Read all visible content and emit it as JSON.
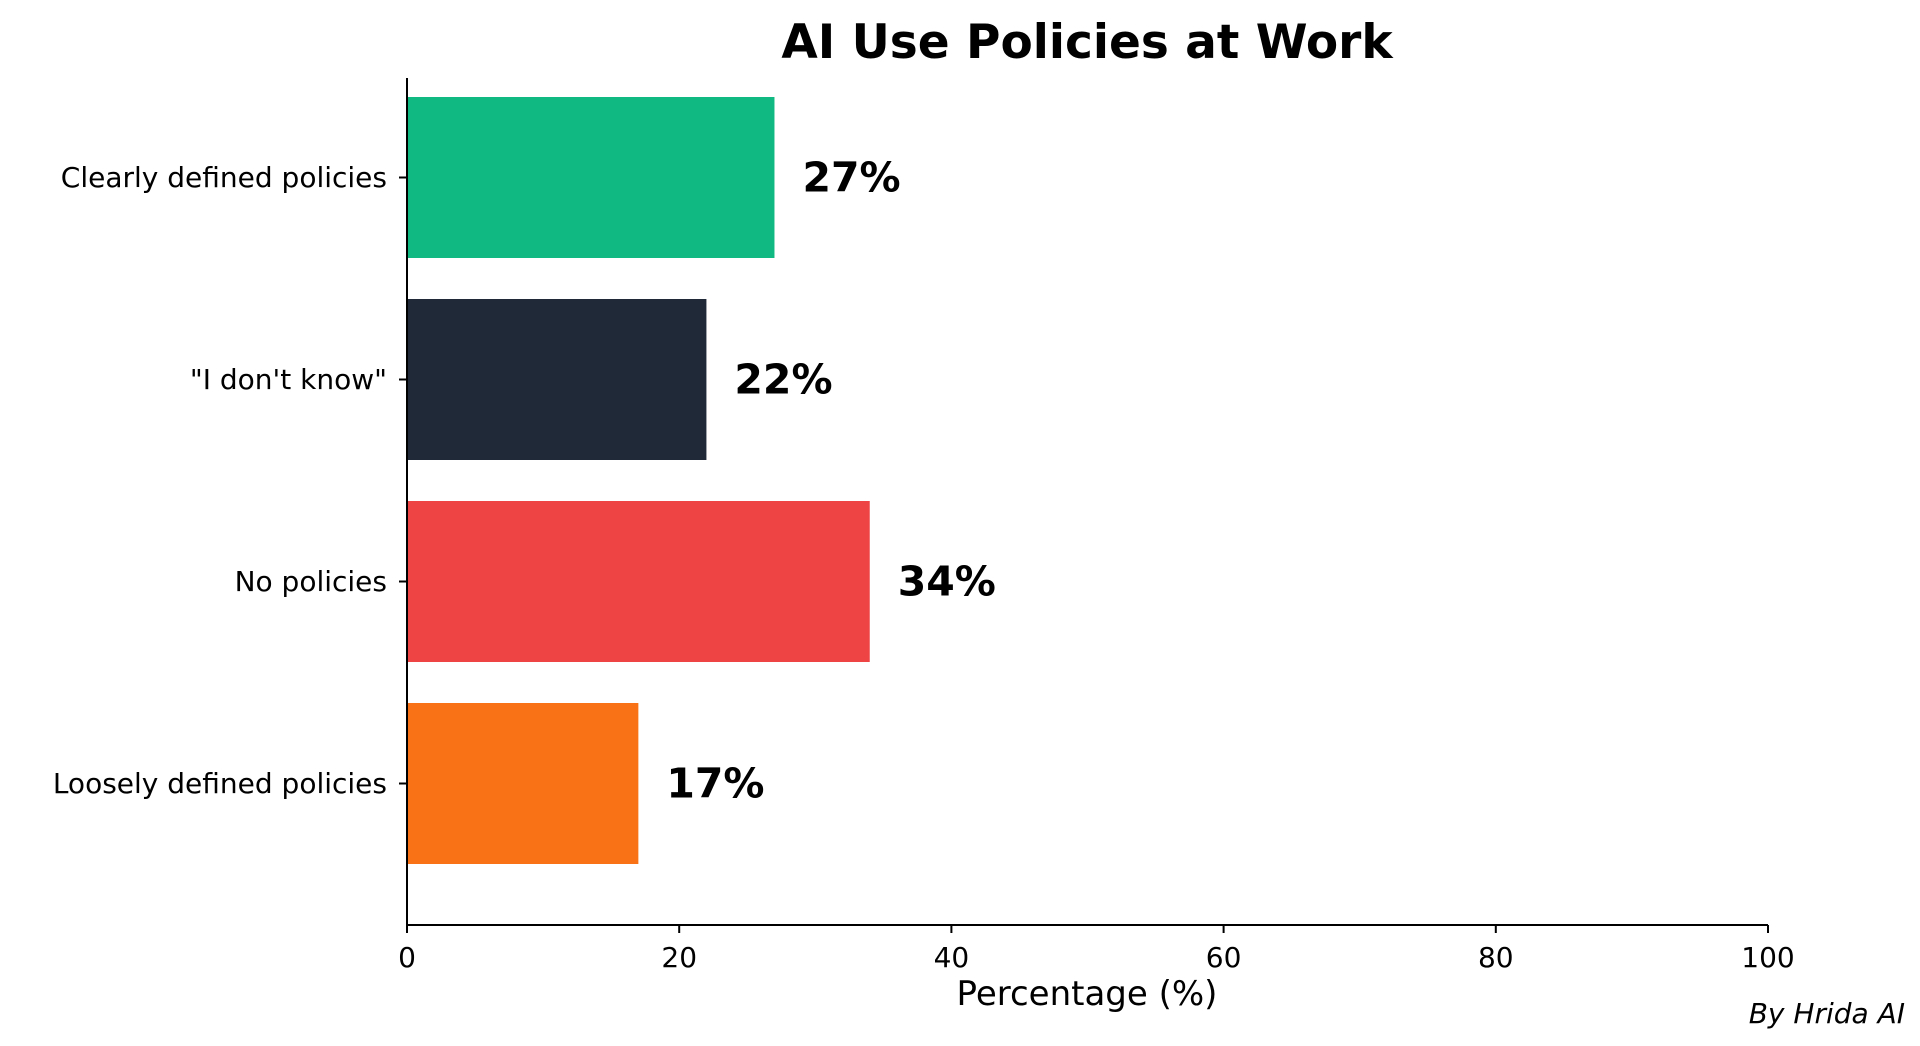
{
  "chart_data": {
    "type": "bar",
    "orientation": "horizontal",
    "title": "AI Use Policies at Work",
    "xlabel": "Percentage (%)",
    "ylabel": "",
    "xlim": [
      0,
      100
    ],
    "xticks": [
      0,
      20,
      40,
      60,
      80,
      100
    ],
    "grid": false,
    "legend": "none",
    "categories": [
      "Clearly defined policies",
      "\"I don't know\"",
      "No policies",
      "Loosely defined policies"
    ],
    "values": [
      27,
      22,
      34,
      17
    ],
    "value_labels": [
      "27%",
      "22%",
      "34%",
      "17%"
    ],
    "colors": [
      "#10b981",
      "#1f2937",
      "#ef4444",
      "#f97316"
    ]
  },
  "credit": "By Hrida AI"
}
